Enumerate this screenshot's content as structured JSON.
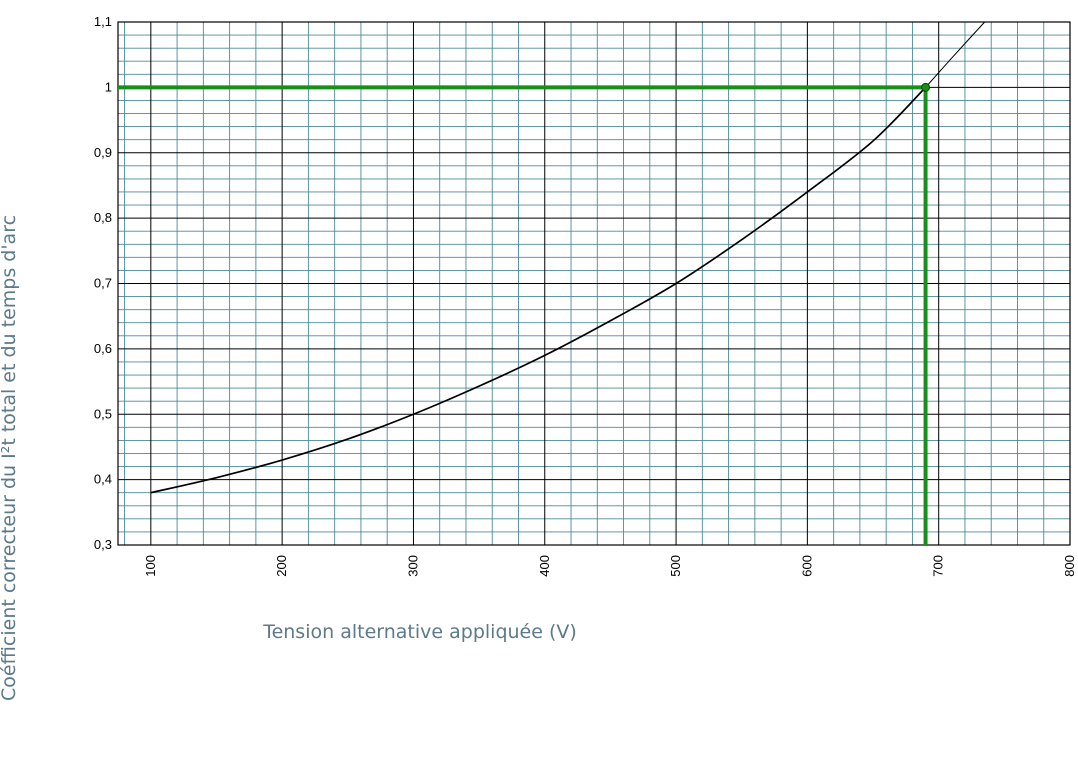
{
  "chart_data": {
    "type": "line",
    "xlabel": "Tension alternative appliquée (V)",
    "ylabel": "Coéfficient correcteur du I²t total et du temps d'arc",
    "xlim": [
      75,
      800
    ],
    "ylim": [
      0.3,
      1.1
    ],
    "x_ticks": [
      {
        "value": 100,
        "label": "100"
      },
      {
        "value": 200,
        "label": "200"
      },
      {
        "value": 300,
        "label": "300"
      },
      {
        "value": 400,
        "label": "400"
      },
      {
        "value": 500,
        "label": "500"
      },
      {
        "value": 600,
        "label": "600"
      },
      {
        "value": 700,
        "label": "700"
      },
      {
        "value": 800,
        "label": "800"
      }
    ],
    "y_ticks": [
      {
        "value": 0.3,
        "label": "0,3"
      },
      {
        "value": 0.4,
        "label": "0,4"
      },
      {
        "value": 0.5,
        "label": "0,5"
      },
      {
        "value": 0.6,
        "label": "0,6"
      },
      {
        "value": 0.7,
        "label": "0,7"
      },
      {
        "value": 0.8,
        "label": "0,8"
      },
      {
        "value": 0.9,
        "label": "0,9"
      },
      {
        "value": 1.0,
        "label": "1"
      },
      {
        "value": 1.1,
        "label": "1,1"
      }
    ],
    "x_minor_step": 20,
    "y_minor_step": 0.02,
    "grid": true,
    "series": [
      {
        "x": [
          100,
          150,
          200,
          250,
          300,
          350,
          400,
          450,
          500,
          550,
          600,
          650,
          690
        ],
        "y": [
          0.38,
          0.403,
          0.43,
          0.462,
          0.5,
          0.543,
          0.59,
          0.643,
          0.7,
          0.767,
          0.84,
          0.918,
          1.0
        ]
      },
      {
        "x": [
          690,
          710,
          735
        ],
        "y": [
          1.0,
          1.045,
          1.1
        ]
      }
    ],
    "annotations": [
      {
        "type": "hline",
        "y": 1.0,
        "x_from": 75,
        "x_to": 690
      },
      {
        "type": "vline",
        "x": 690,
        "y_from": 0.3,
        "y_to": 1.0
      },
      {
        "type": "point",
        "x": 690,
        "y": 1.0
      }
    ],
    "colors": {
      "grid_minor": "#4b8a98",
      "grid_major": "#000000",
      "curve": "#000000",
      "highlight": "#159018",
      "label_text": "#5c7a8a"
    }
  }
}
